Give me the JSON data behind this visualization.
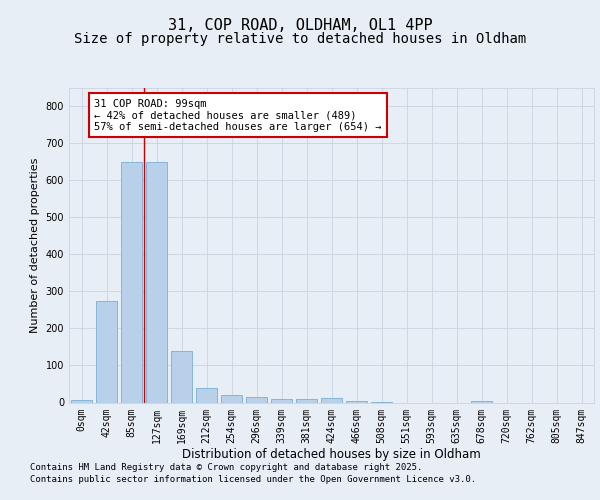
{
  "title1": "31, COP ROAD, OLDHAM, OL1 4PP",
  "title2": "Size of property relative to detached houses in Oldham",
  "xlabel": "Distribution of detached houses by size in Oldham",
  "ylabel": "Number of detached properties",
  "categories": [
    "0sqm",
    "42sqm",
    "85sqm",
    "127sqm",
    "169sqm",
    "212sqm",
    "254sqm",
    "296sqm",
    "339sqm",
    "381sqm",
    "424sqm",
    "466sqm",
    "508sqm",
    "551sqm",
    "593sqm",
    "635sqm",
    "678sqm",
    "720sqm",
    "762sqm",
    "805sqm",
    "847sqm"
  ],
  "values": [
    8,
    275,
    650,
    648,
    140,
    38,
    20,
    15,
    10,
    10,
    12,
    4,
    1,
    0,
    0,
    0,
    5,
    0,
    0,
    0,
    0
  ],
  "bar_color": "#b8d0ea",
  "bar_edge_color": "#7aafd4",
  "vline_x": 2.5,
  "vline_color": "#cc0000",
  "annotation_text": "31 COP ROAD: 99sqm\n← 42% of detached houses are smaller (489)\n57% of semi-detached houses are larger (654) →",
  "annotation_box_color": "white",
  "annotation_box_edge_color": "#cc0000",
  "bg_color": "#e8eef5",
  "plot_bg_color": "#e8eef5",
  "ylim": [
    0,
    850
  ],
  "yticks": [
    0,
    100,
    200,
    300,
    400,
    500,
    600,
    700,
    800
  ],
  "footer_line1": "Contains HM Land Registry data © Crown copyright and database right 2025.",
  "footer_line2": "Contains public sector information licensed under the Open Government Licence v3.0.",
  "grid_color": "#c8d4e0",
  "title1_fontsize": 11,
  "title2_fontsize": 10,
  "xlabel_fontsize": 8.5,
  "ylabel_fontsize": 8,
  "tick_fontsize": 7,
  "annotation_fontsize": 7.5,
  "footer_fontsize": 6.5
}
